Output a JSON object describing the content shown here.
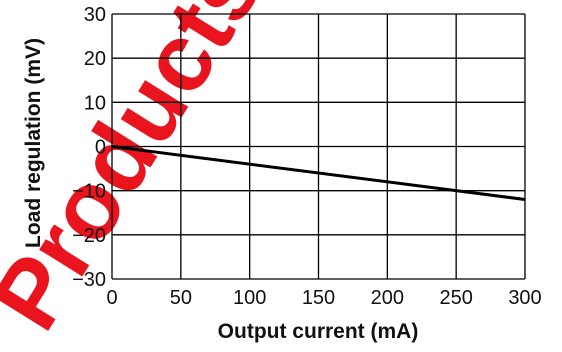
{
  "chart_data": {
    "type": "line",
    "xlabel": "Output current (mA)",
    "ylabel": "Load regulation (mV)",
    "xlim": [
      0,
      300
    ],
    "ylim": [
      -30,
      30
    ],
    "xticks": [
      "0",
      "50",
      "100",
      "150",
      "200",
      "250",
      "300"
    ],
    "yticks": [
      "30",
      "20",
      "10",
      "0",
      "−10",
      "−20",
      "−30"
    ],
    "grid": true,
    "series": [
      {
        "x": [
          0,
          300
        ],
        "y": [
          0,
          -12
        ],
        "color": "#000000"
      }
    ]
  },
  "watermark": {
    "text": "Products",
    "color": "#e8000b"
  }
}
